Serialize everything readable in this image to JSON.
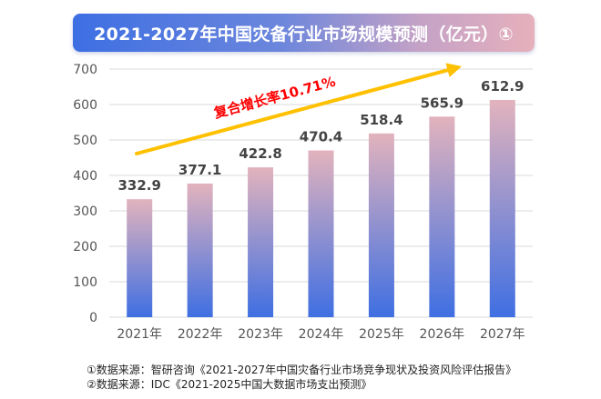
{
  "title": "2021-2027年中国灾备行业市场规模预测（亿元）①",
  "chart_data": {
    "type": "bar",
    "categories": [
      "2021年",
      "2022年",
      "2023年",
      "2024年",
      "2025年",
      "2026年",
      "2027年"
    ],
    "values": [
      332.9,
      377.1,
      422.8,
      470.4,
      518.4,
      565.9,
      612.9
    ],
    "value_labels": [
      "332.9",
      "377.1",
      "422.8",
      "470.4",
      "518.4",
      "565.9",
      "612.9"
    ],
    "ylim": [
      0,
      700
    ],
    "yticks": [
      0,
      100,
      200,
      300,
      400,
      500,
      600,
      700
    ],
    "ytick_labels": [
      "0",
      "100",
      "200",
      "300",
      "400",
      "500",
      "600",
      "700"
    ],
    "grid": true,
    "annotation": "复合增长率10.71%",
    "colors": {
      "bar_top": "#e2b3bd",
      "bar_bottom": "#3f6fe2",
      "arrow": "#ffc000",
      "annotation_text": "#ff0000",
      "grid": "#d9d9d9"
    }
  },
  "footnotes": [
    "①数据来源：智研咨询《2021-2027年中国灾备行业市场竞争现状及投资风险评估报告》",
    "②数据来源：IDC《2021-2025中国大数据市场支出预测》"
  ]
}
